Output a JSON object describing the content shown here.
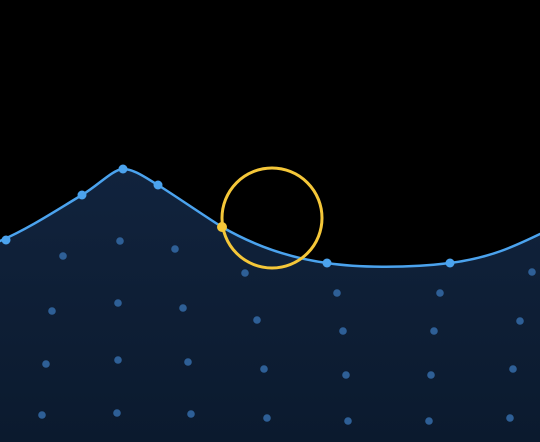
{
  "colors": {
    "background": "#000000",
    "fill_top": "#11233d",
    "fill_bottom": "#0b1a2e",
    "curve": "#4ba3ee",
    "curve_vertex": "#4ba3ee",
    "grid_dot": "#2e5f96",
    "highlight_ring": "#f5c739",
    "highlight_point": "#f5c739"
  },
  "scene": {
    "shape": "smooth-wave-curve-over-filled-area",
    "filled_region": "below-curve",
    "curve_vertex_count": 7,
    "selected_vertex_index": 4,
    "selection_indicator": "circle-ring",
    "background_dot_pattern": "scattered-grid"
  }
}
